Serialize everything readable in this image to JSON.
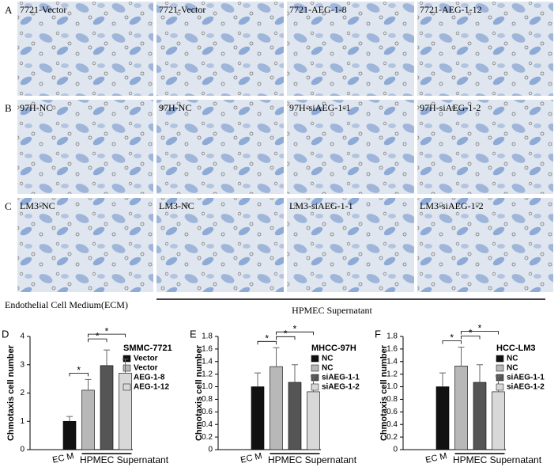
{
  "image_panels": {
    "rows": [
      {
        "letter": "A",
        "labels": [
          "7721-Vector",
          "7721-Vector",
          "7721-AEG-1-8",
          "7721-AEG-1-12"
        ]
      },
      {
        "letter": "B",
        "labels": [
          "97H-NC",
          "97H-NC",
          "97H-siAEG-1-1",
          "97H-siAEG-1-2"
        ]
      },
      {
        "letter": "C",
        "labels": [
          "LM3-NC",
          "LM3-NC",
          "LM3-siAEG-1-1",
          "LM3-siAEG-1-2"
        ]
      }
    ],
    "ecm_label": "Endothelial Cell Medium(ECM)",
    "hpmec_label": "HPMEC Supernatant"
  },
  "chart_data": [
    {
      "type": "bar",
      "panel": "D",
      "legend_title": "SMMC-7721",
      "ylabel": "Chmotaxis cell number",
      "x_labels": [
        "EC M",
        "HPMEC Supernatant"
      ],
      "significance": [
        "*",
        "*",
        "*"
      ],
      "ylim": [
        0,
        4
      ],
      "yticks": [
        0,
        1,
        2,
        3,
        4
      ],
      "series": [
        {
          "name": "Vector",
          "color": "#111111",
          "values": [
            1.0
          ],
          "errors": [
            0.17
          ]
        },
        {
          "name": "Vector",
          "color": "#b8b8b8",
          "values": [
            2.1
          ],
          "errors": [
            0.38
          ]
        },
        {
          "name": "AEG-1-8",
          "color": "#555555",
          "values": [
            2.97
          ],
          "errors": [
            0.55
          ]
        },
        {
          "name": "AEG-1-12",
          "color": "#d8d8d8",
          "values": [
            2.7
          ],
          "errors": [
            0.5
          ]
        }
      ]
    },
    {
      "type": "bar",
      "panel": "E",
      "legend_title": "MHCC-97H",
      "ylabel": "Chmotaxis cell number",
      "x_labels": [
        "EC M",
        "HPMEC Supernatant"
      ],
      "significance": [
        "*",
        "*",
        "*"
      ],
      "ylim": [
        0,
        1.8
      ],
      "yticks": [
        0,
        0.2,
        0.4,
        0.6,
        0.8,
        {
          "value": 1,
          "label": "1.0"
        },
        1.2,
        1.4,
        1.6,
        1.8
      ],
      "series": [
        {
          "name": "NC",
          "color": "#111111",
          "values": [
            1.0
          ],
          "errors": [
            0.22
          ]
        },
        {
          "name": "NC",
          "color": "#b8b8b8",
          "values": [
            1.32
          ],
          "errors": [
            0.3
          ]
        },
        {
          "name": "siAEG-1-1",
          "color": "#555555",
          "values": [
            1.07
          ],
          "errors": [
            0.28
          ]
        },
        {
          "name": "siAEG-1-2",
          "color": "#d8d8d8",
          "values": [
            0.92
          ],
          "errors": [
            0.25
          ]
        }
      ]
    },
    {
      "type": "bar",
      "panel": "F",
      "legend_title": "HCC-LM3",
      "ylabel": "Chmotaxis cell number",
      "x_labels": [
        "EC M",
        "HPMEC Supernatant"
      ],
      "significance": [
        "*",
        "*",
        "*"
      ],
      "ylim": [
        0,
        1.8
      ],
      "yticks": [
        0,
        0.2,
        0.4,
        0.6,
        0.8,
        {
          "value": 1,
          "label": "1.0"
        },
        1.2,
        1.4,
        1.6,
        1.8
      ],
      "series": [
        {
          "name": "NC",
          "color": "#111111",
          "values": [
            1.0
          ],
          "errors": [
            0.22
          ]
        },
        {
          "name": "NC",
          "color": "#b8b8b8",
          "values": [
            1.33
          ],
          "errors": [
            0.3
          ]
        },
        {
          "name": "siAEG-1-1",
          "color": "#555555",
          "values": [
            1.07
          ],
          "errors": [
            0.28
          ]
        },
        {
          "name": "siAEG-1-2",
          "color": "#d8d8d8",
          "values": [
            0.92
          ],
          "errors": [
            0.25
          ]
        }
      ]
    }
  ]
}
